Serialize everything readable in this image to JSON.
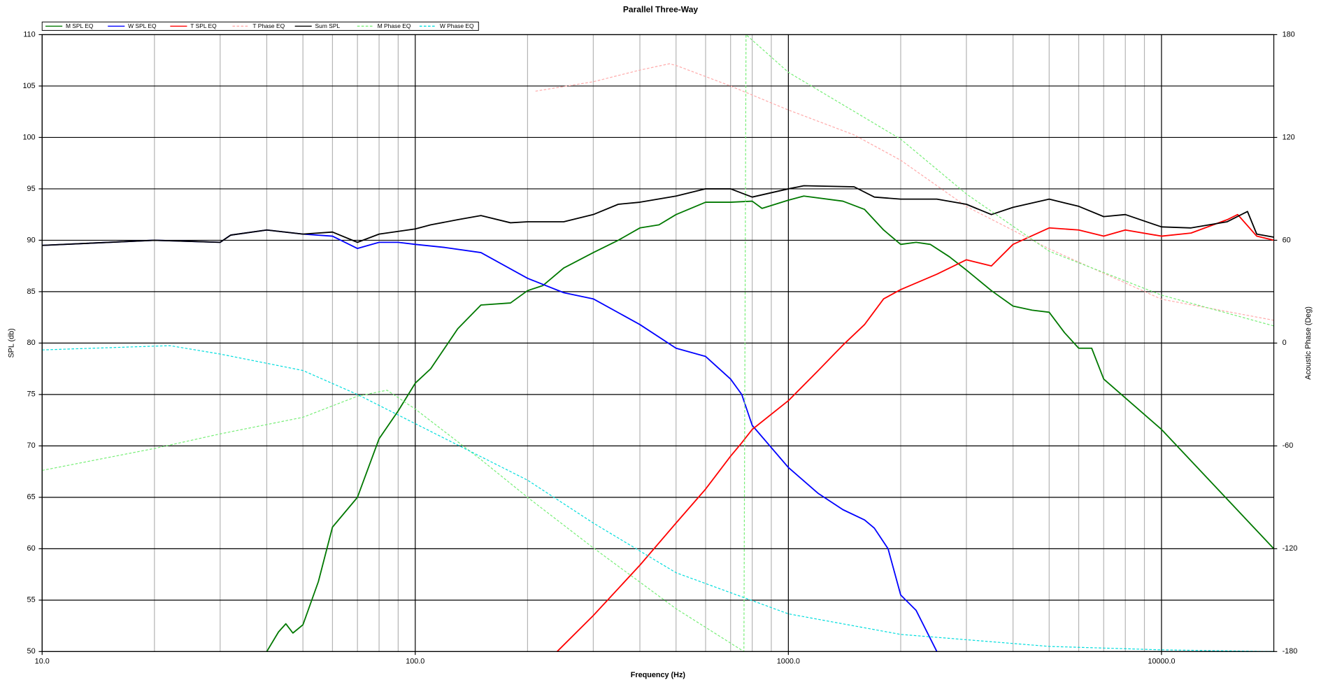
{
  "chart_data": {
    "type": "line",
    "title": "Parallel Three-Way",
    "x_label": "Frequency (Hz)",
    "y_label": "SPL (db)",
    "y2_label": "Acoustic Phase (Deg)",
    "xscale": "log",
    "grid": true,
    "legend": "top-left",
    "xlim": [
      10,
      20000
    ],
    "xticks": [
      {
        "value": 10,
        "label": "10.0"
      },
      {
        "value": 100,
        "label": "100.0"
      },
      {
        "value": 1000,
        "label": "1000.0"
      },
      {
        "value": 10000,
        "label": "10000.0"
      }
    ],
    "xminorticks": [
      20,
      30,
      40,
      50,
      60,
      70,
      80,
      90,
      200,
      300,
      400,
      500,
      600,
      700,
      800,
      900,
      2000,
      3000,
      4000,
      5000,
      6000,
      7000,
      8000,
      9000
    ],
    "ylim": [
      50,
      110
    ],
    "yticks": [
      50,
      55,
      60,
      65,
      70,
      75,
      80,
      85,
      90,
      95,
      100,
      105,
      110
    ],
    "y2lim": [
      -180,
      180
    ],
    "y2ticks": [
      -180,
      -120,
      -60,
      0,
      60,
      120,
      180
    ],
    "series": [
      {
        "name": "M SPL EQ",
        "color": "#007800",
        "dashed": false,
        "x": [
          40,
          43,
          45,
          47,
          50,
          55,
          60,
          70,
          80,
          90,
          100,
          110,
          130,
          150,
          180,
          200,
          220,
          250,
          300,
          350,
          400,
          450,
          500,
          600,
          700,
          800,
          850,
          1000,
          1100,
          1400,
          1600,
          1800,
          2000,
          2200,
          2400,
          2700,
          3000,
          3500,
          4000,
          4500,
          5000,
          5500,
          6000,
          6500,
          7000,
          10000,
          20000
        ],
        "values": [
          50,
          51.9,
          52.7,
          51.8,
          52.6,
          56.8,
          62.1,
          65,
          70.7,
          73.4,
          76.1,
          77.5,
          81.4,
          83.7,
          83.9,
          85.1,
          85.6,
          87.3,
          88.8,
          90,
          91.2,
          91.5,
          92.5,
          93.7,
          93.7,
          93.8,
          93.1,
          93.9,
          94.3,
          93.8,
          93,
          91,
          89.6,
          89.8,
          89.6,
          88.4,
          87.1,
          85.1,
          83.6,
          83.2,
          83,
          81,
          79.5,
          79.5,
          76.5,
          71.6,
          60
        ]
      },
      {
        "name": "W SPL EQ",
        "color": "#0000ff",
        "dashed": false,
        "x": [
          10,
          20,
          30,
          32,
          40,
          50,
          60,
          70,
          80,
          90,
          100,
          120,
          150,
          200,
          250,
          300,
          400,
          500,
          600,
          700,
          750,
          800,
          1000,
          1200,
          1400,
          1600,
          1700,
          1850,
          2000,
          2200,
          2500
        ],
        "values": [
          89.5,
          90,
          89.8,
          90.5,
          91,
          90.6,
          90.4,
          89.2,
          89.8,
          89.8,
          89.6,
          89.3,
          88.8,
          86.3,
          84.9,
          84.3,
          81.8,
          79.5,
          78.7,
          76.5,
          75,
          72,
          67.9,
          65.4,
          63.8,
          62.8,
          62,
          60,
          55.5,
          54,
          50
        ]
      },
      {
        "name": "T SPL EQ",
        "color": "#ff0000",
        "dashed": false,
        "x": [
          240,
          300,
          400,
          500,
          600,
          700,
          750,
          800,
          1000,
          1200,
          1400,
          1600,
          1800,
          2000,
          2500,
          3000,
          3500,
          4000,
          5000,
          6000,
          7000,
          8000,
          10000,
          12000,
          15000,
          16000,
          18000,
          20000
        ],
        "values": [
          50,
          53.5,
          58.4,
          62.5,
          65.8,
          69,
          70.3,
          71.6,
          74.4,
          77.3,
          79.8,
          81.8,
          84.3,
          85.2,
          86.7,
          88.1,
          87.5,
          89.6,
          91.2,
          91,
          90.4,
          91,
          90.4,
          90.7,
          92,
          92.5,
          90.4,
          90
        ]
      },
      {
        "name": "T Phase EQ",
        "color": "#ffaaaa",
        "dashed": true,
        "axis": "y2",
        "x": [
          210,
          300,
          400,
          480,
          500,
          700,
          1000,
          1500,
          2000,
          3000,
          5000,
          10000,
          20000
        ],
        "values": [
          147,
          152.5,
          159.3,
          163,
          162,
          150,
          136,
          121.5,
          106.7,
          79.7,
          55,
          25.6,
          13.3
        ]
      },
      {
        "name": "Sum SPL",
        "color": "#000000",
        "dashed": false,
        "x": [
          10,
          20,
          30,
          32,
          40,
          50,
          60,
          70,
          80,
          100,
          110,
          130,
          150,
          180,
          200,
          250,
          300,
          350,
          400,
          500,
          600,
          700,
          800,
          1000,
          1100,
          1500,
          1700,
          2000,
          2500,
          3000,
          3500,
          4000,
          5000,
          6000,
          7000,
          8000,
          10000,
          12000,
          15000,
          17000,
          18000,
          20000
        ],
        "values": [
          89.5,
          90,
          89.8,
          90.5,
          91,
          90.6,
          90.8,
          89.8,
          90.6,
          91.1,
          91.5,
          92,
          92.4,
          91.7,
          91.8,
          91.8,
          92.5,
          93.5,
          93.7,
          94.3,
          95,
          95,
          94.2,
          95,
          95.3,
          95.2,
          94.2,
          94,
          94,
          93.5,
          92.5,
          93.2,
          94,
          93.3,
          92.3,
          92.5,
          91.3,
          91.2,
          91.8,
          92.8,
          90.6,
          90.3
        ]
      },
      {
        "name": "M Phase EQ",
        "color": "#77ee77",
        "dashed": true,
        "axis": "y2",
        "x": [
          10,
          20,
          30,
          50,
          70,
          84,
          100,
          150,
          200,
          300,
          500,
          760,
          770,
          1000,
          2000,
          3000,
          5000,
          10000,
          20000
        ],
        "values": [
          -74.3,
          -61.5,
          -53,
          -43.3,
          -31,
          -27.5,
          -38.5,
          -68,
          -90,
          -119.5,
          -155,
          -180,
          180,
          158,
          119,
          87,
          53.6,
          28,
          10
        ]
      },
      {
        "name": "W Phase EQ",
        "color": "#00dddd",
        "dashed": true,
        "axis": "y2",
        "x": [
          10,
          20,
          22,
          30,
          50,
          70,
          100,
          200,
          300,
          500,
          1000,
          2000,
          5000,
          10000,
          20000
        ],
        "values": [
          -4,
          -1.8,
          -1.5,
          -6.4,
          -16,
          -30,
          -47,
          -80,
          -105,
          -134,
          -158,
          -170,
          -177,
          -179,
          -180
        ]
      }
    ]
  }
}
